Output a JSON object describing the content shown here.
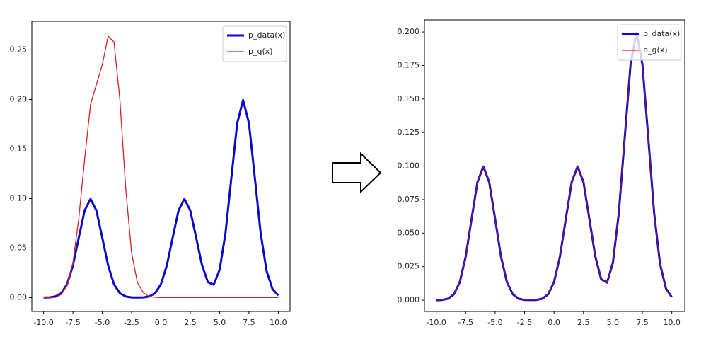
{
  "chart_data": [
    {
      "type": "line",
      "xlim": [
        -11,
        11
      ],
      "ylim": [
        -0.014,
        0.279
      ],
      "xticks": [
        {
          "value": -10,
          "label": "-10.0"
        },
        {
          "value": -7.5,
          "label": "-7.5"
        },
        {
          "value": -5,
          "label": "-5.0"
        },
        {
          "value": -2.5,
          "label": "-2.5"
        },
        {
          "value": 0,
          "label": "0.0"
        },
        {
          "value": 2.5,
          "label": "2.5"
        },
        {
          "value": 5,
          "label": "5.0"
        },
        {
          "value": 7.5,
          "label": "7.5"
        },
        {
          "value": 10,
          "label": "10.0"
        }
      ],
      "yticks": [
        {
          "value": 0,
          "label": "0.00"
        },
        {
          "value": 0.05,
          "label": "0.05"
        },
        {
          "value": 0.1,
          "label": "0.10"
        },
        {
          "value": 0.15,
          "label": "0.15"
        },
        {
          "value": 0.2,
          "label": "0.20"
        },
        {
          "value": 0.25,
          "label": "0.25"
        }
      ],
      "legend": "upper right",
      "x": [
        -10,
        -9.5,
        -9,
        -8.5,
        -8,
        -7.5,
        -7,
        -6.5,
        -6,
        -5.5,
        -5,
        -4.5,
        -4,
        -3.5,
        -3,
        -2.5,
        -2,
        -1.5,
        -1,
        -0.5,
        0,
        0.5,
        1,
        1.5,
        2,
        2.5,
        3,
        3.5,
        4,
        4.5,
        5,
        5.5,
        6,
        6.5,
        7,
        7.5,
        8,
        8.5,
        9,
        9.5,
        10
      ],
      "series": [
        {
          "name": "p_data(x)",
          "color": "#0a0ac8",
          "values": [
            0.0,
            0.0002,
            0.0011,
            0.0044,
            0.0135,
            0.0324,
            0.0605,
            0.088,
            0.0997,
            0.088,
            0.0605,
            0.0324,
            0.0135,
            0.0044,
            0.0011,
            0.0002,
            0.0001,
            0.0002,
            0.0011,
            0.0044,
            0.0135,
            0.0324,
            0.0605,
            0.088,
            0.0997,
            0.088,
            0.0606,
            0.0328,
            0.0157,
            0.0131,
            0.0281,
            0.065,
            0.121,
            0.1761,
            0.1995,
            0.1761,
            0.121,
            0.0648,
            0.027,
            0.0088,
            0.0022
          ]
        },
        {
          "name": "p_g(x)",
          "color": "#d42020",
          "values": [
            0.0,
            0.0,
            0.0002,
            0.003,
            0.012,
            0.035,
            0.08,
            0.14,
            0.195,
            0.215,
            0.235,
            0.264,
            0.258,
            0.2,
            0.11,
            0.045,
            0.015,
            0.005,
            0.001,
            0.0003,
            0,
            0,
            0,
            0,
            0,
            0,
            0,
            0,
            0,
            0,
            0,
            0,
            0,
            0,
            0,
            0,
            0,
            0,
            0,
            0,
            0
          ]
        }
      ]
    },
    {
      "type": "line",
      "xlim": [
        -11,
        11.1
      ],
      "ylim": [
        -0.0084,
        0.209
      ],
      "xticks": [
        {
          "value": -10,
          "label": "-10.0"
        },
        {
          "value": -7.5,
          "label": "-7.5"
        },
        {
          "value": -5,
          "label": "-5.0"
        },
        {
          "value": -2.5,
          "label": "-2.5"
        },
        {
          "value": 0,
          "label": "0.0"
        },
        {
          "value": 2.5,
          "label": "2.5"
        },
        {
          "value": 5,
          "label": "5.0"
        },
        {
          "value": 7.5,
          "label": "7.5"
        },
        {
          "value": 10,
          "label": "10.0"
        }
      ],
      "yticks": [
        {
          "value": 0,
          "label": "0.000"
        },
        {
          "value": 0.025,
          "label": "0.025"
        },
        {
          "value": 0.05,
          "label": "0.050"
        },
        {
          "value": 0.075,
          "label": "0.075"
        },
        {
          "value": 0.1,
          "label": "0.100"
        },
        {
          "value": 0.125,
          "label": "0.125"
        },
        {
          "value": 0.15,
          "label": "0.150"
        },
        {
          "value": 0.175,
          "label": "0.175"
        },
        {
          "value": 0.2,
          "label": "0.200"
        }
      ],
      "legend": "upper right",
      "x": [
        -10,
        -9.5,
        -9,
        -8.5,
        -8,
        -7.5,
        -7,
        -6.5,
        -6,
        -5.5,
        -5,
        -4.5,
        -4,
        -3.5,
        -3,
        -2.5,
        -2,
        -1.5,
        -1,
        -0.5,
        0,
        0.5,
        1,
        1.5,
        2,
        2.5,
        3,
        3.5,
        4,
        4.5,
        5,
        5.5,
        6,
        6.5,
        7,
        7.5,
        8,
        8.5,
        9,
        9.5,
        10
      ],
      "series": [
        {
          "name": "p_data(x)",
          "color": "#0a0ac8",
          "values": [
            0.0,
            0.0002,
            0.0011,
            0.0044,
            0.0135,
            0.0324,
            0.0605,
            0.088,
            0.0997,
            0.088,
            0.0605,
            0.0324,
            0.0135,
            0.0044,
            0.0011,
            0.0002,
            0.0001,
            0.0002,
            0.0011,
            0.0044,
            0.0135,
            0.0324,
            0.0605,
            0.088,
            0.0997,
            0.088,
            0.0606,
            0.0328,
            0.0157,
            0.0131,
            0.0281,
            0.065,
            0.121,
            0.1761,
            0.1995,
            0.1761,
            0.121,
            0.0648,
            0.027,
            0.0088,
            0.0022
          ]
        },
        {
          "name": "p_g(x)",
          "color": "#d42020",
          "values": [
            0.0,
            0.0002,
            0.0011,
            0.0044,
            0.0135,
            0.0324,
            0.0605,
            0.088,
            0.0997,
            0.088,
            0.0605,
            0.0324,
            0.0135,
            0.0044,
            0.0011,
            0.0002,
            0.0001,
            0.0002,
            0.0011,
            0.0044,
            0.0135,
            0.0324,
            0.0605,
            0.088,
            0.0997,
            0.088,
            0.0606,
            0.0328,
            0.0157,
            0.0131,
            0.0281,
            0.065,
            0.121,
            0.1761,
            0.1995,
            0.1761,
            0.121,
            0.0648,
            0.027,
            0.0088,
            0.0022
          ]
        }
      ]
    }
  ]
}
